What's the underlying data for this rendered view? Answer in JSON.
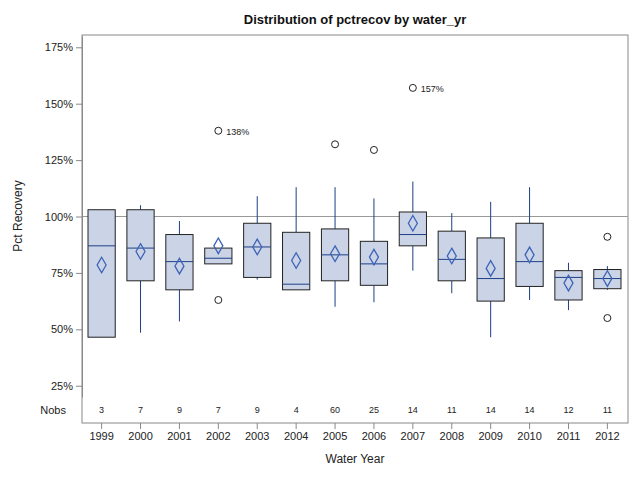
{
  "chart_data": {
    "type": "box",
    "title": "Distribution of pctrecov by water_yr",
    "x_label": "Water Year",
    "y_label": "Pct Recovery",
    "categories": [
      "1999",
      "2000",
      "2001",
      "2002",
      "2003",
      "2004",
      "2005",
      "2006",
      "2007",
      "2008",
      "2009",
      "2010",
      "2011",
      "2012"
    ],
    "q1": [
      46.5,
      71.5,
      67.5,
      79,
      73,
      67.5,
      71.5,
      69.5,
      87,
      71.5,
      62.5,
      69,
      63,
      68
    ],
    "median": [
      87,
      86,
      80,
      81.5,
      86.5,
      70,
      83,
      79,
      92,
      81,
      72.5,
      80,
      73,
      72.5
    ],
    "q3": [
      103,
      103,
      92,
      86,
      97,
      93,
      94.5,
      89,
      102,
      93.5,
      90.5,
      97,
      76,
      76.5
    ],
    "whisker_low": [
      46.5,
      48.5,
      53.5,
      79,
      72,
      67.5,
      60,
      62,
      76,
      66,
      46.5,
      63,
      58.5,
      67.5
    ],
    "whisker_high": [
      103,
      105,
      98,
      86,
      109,
      113,
      113,
      108,
      115.5,
      101.5,
      106.5,
      113,
      79.5,
      78
    ],
    "mean": [
      78.5,
      84.5,
      78,
      87,
      86.5,
      80.5,
      83.5,
      82,
      97,
      82.5,
      77,
      83,
      70.5,
      72.5
    ],
    "outliers": [
      [],
      [],
      [],
      [
        138,
        63
      ],
      [],
      [],
      [
        132
      ],
      [
        129.5
      ],
      [
        157
      ],
      [],
      [],
      [],
      [],
      [
        91,
        55
      ]
    ],
    "annotations": [
      {
        "category": "2002",
        "value": 138,
        "text": "138%"
      },
      {
        "category": "2007",
        "value": 157,
        "text": "157%"
      }
    ],
    "nobs_label": "Nobs",
    "nobs": [
      3,
      7,
      9,
      7,
      9,
      4,
      60,
      25,
      14,
      11,
      14,
      14,
      12,
      11
    ],
    "reference_line": 100,
    "color": "#cad4e6",
    "grid": false,
    "ylim": [
      20,
      180
    ],
    "yticks": [
      {
        "value": 25,
        "label": "25%"
      },
      {
        "value": 50,
        "label": "50%"
      },
      {
        "value": 75,
        "label": "75%"
      },
      {
        "value": 100,
        "label": "100%"
      },
      {
        "value": 125,
        "label": "125%"
      },
      {
        "value": 150,
        "label": "150%"
      },
      {
        "value": 175,
        "label": "175%"
      }
    ]
  }
}
